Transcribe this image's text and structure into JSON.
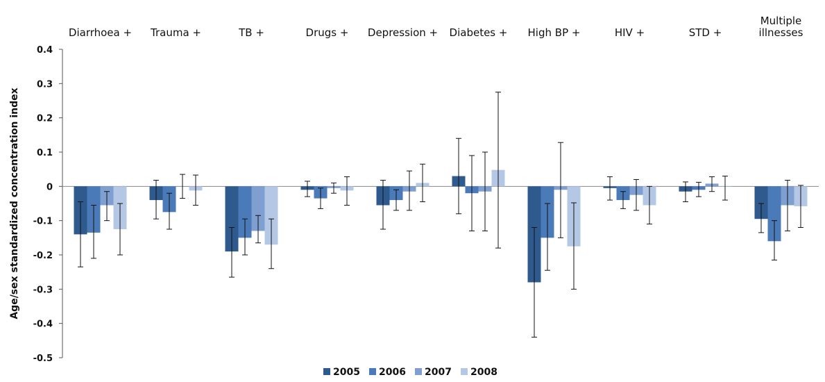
{
  "chart_data": {
    "type": "bar",
    "title": "",
    "xlabel": "",
    "ylabel": "Age/sex standardized concentration index",
    "ylim": [
      -0.5,
      0.4
    ],
    "yticks": [
      0.4,
      0.3,
      0.2,
      0.1,
      0,
      -0.1,
      -0.2,
      -0.3,
      -0.4,
      -0.5
    ],
    "ytick_labels": [
      "0.4",
      "0.3",
      "0.2",
      "0.1",
      "0",
      "-0.1",
      "-0.2",
      "-0.3",
      "-0.4",
      "-0.5"
    ],
    "grid": false,
    "legend_position": "bottom",
    "categories": [
      "Diarrhoea +",
      "Trauma +",
      "TB +",
      "Drugs +",
      "Depression +",
      "Diabetes +",
      "High BP +",
      "HIV +",
      "STD +",
      "Multiple illnesses"
    ],
    "series": [
      {
        "name": "2005",
        "color": "#2e5a8e",
        "values": [
          -0.14,
          -0.04,
          -0.19,
          -0.01,
          -0.055,
          0.03,
          -0.28,
          -0.005,
          -0.015,
          -0.095
        ],
        "err_low": [
          -0.235,
          -0.095,
          -0.265,
          -0.03,
          -0.125,
          -0.08,
          -0.44,
          -0.04,
          -0.045,
          -0.135
        ],
        "err_high": [
          -0.045,
          0.018,
          -0.12,
          0.015,
          0.018,
          0.14,
          -0.12,
          0.028,
          0.013,
          -0.05
        ]
      },
      {
        "name": "2006",
        "color": "#4a7ab8",
        "values": [
          -0.135,
          -0.075,
          -0.15,
          -0.035,
          -0.04,
          -0.02,
          -0.15,
          -0.04,
          -0.01,
          -0.16
        ],
        "err_low": [
          -0.21,
          -0.125,
          -0.2,
          -0.065,
          -0.07,
          -0.13,
          -0.245,
          -0.065,
          -0.03,
          -0.215
        ],
        "err_high": [
          -0.055,
          -0.02,
          -0.095,
          -0.005,
          -0.01,
          0.09,
          -0.05,
          -0.015,
          0.012,
          -0.1
        ]
      },
      {
        "name": "2007",
        "color": "#7e9fcf",
        "values": [
          -0.055,
          0.0,
          -0.13,
          -0.005,
          -0.015,
          -0.015,
          -0.01,
          -0.025,
          0.008,
          -0.055
        ],
        "err_low": [
          -0.1,
          -0.035,
          -0.165,
          -0.02,
          -0.07,
          -0.13,
          -0.15,
          -0.07,
          -0.015,
          -0.13
        ],
        "err_high": [
          -0.015,
          0.035,
          -0.085,
          0.01,
          0.045,
          0.1,
          0.128,
          0.02,
          0.028,
          0.018
        ]
      },
      {
        "name": "2008",
        "color": "#b4c8e6",
        "values": [
          -0.125,
          -0.012,
          -0.17,
          -0.012,
          0.01,
          0.048,
          -0.175,
          -0.055,
          0.0,
          -0.058
        ],
        "err_low": [
          -0.2,
          -0.055,
          -0.24,
          -0.055,
          -0.045,
          -0.18,
          -0.3,
          -0.11,
          -0.04,
          -0.12
        ],
        "err_high": [
          -0.05,
          0.033,
          -0.095,
          0.028,
          0.065,
          0.275,
          -0.048,
          0.0,
          0.03,
          0.003
        ]
      }
    ]
  }
}
